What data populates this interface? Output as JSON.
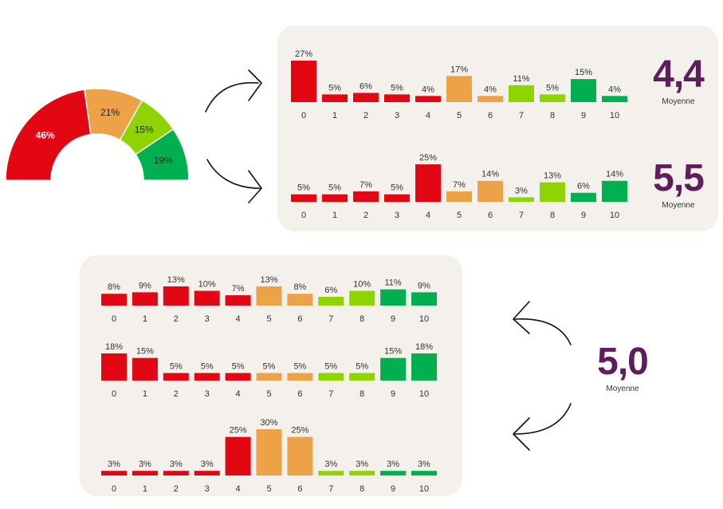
{
  "colors": {
    "red": "#e30613",
    "orange": "#eda247",
    "lightgreen": "#8fd400",
    "green": "#00b050",
    "avg_purple": "#5e1d5b",
    "panel_bg": "#f4f1ec"
  },
  "chart_data": [
    {
      "type": "pie",
      "name": "gauge",
      "slices": [
        {
          "label": "46%",
          "value": 46,
          "color": "#e30613"
        },
        {
          "label": "21%",
          "value": 21,
          "color": "#eda247"
        },
        {
          "label": "15%",
          "value": 15,
          "color": "#8fd400"
        },
        {
          "label": "19%",
          "value": 19,
          "color": "#00b050"
        }
      ]
    },
    {
      "type": "bar",
      "name": "top-chart-1",
      "categories": [
        "0",
        "1",
        "2",
        "3",
        "4",
        "5",
        "6",
        "7",
        "8",
        "9",
        "10"
      ],
      "values": [
        27,
        5,
        6,
        5,
        4,
        17,
        4,
        11,
        5,
        15,
        4
      ],
      "labels": [
        "27%",
        "5%",
        "6%",
        "5%",
        "4%",
        "17%",
        "4%",
        "11%",
        "5%",
        "15%",
        "4%"
      ],
      "average": "4,4",
      "average_label": "Moyenne"
    },
    {
      "type": "bar",
      "name": "top-chart-2",
      "categories": [
        "0",
        "1",
        "2",
        "3",
        "4",
        "5",
        "6",
        "7",
        "8",
        "9",
        "10"
      ],
      "values": [
        5,
        5,
        7,
        5,
        25,
        7,
        14,
        3,
        13,
        6,
        14
      ],
      "labels": [
        "5%",
        "5%",
        "7%",
        "5%",
        "25%",
        "7%",
        "14%",
        "3%",
        "13%",
        "6%",
        "14%"
      ],
      "average": "5,5",
      "average_label": "Moyenne"
    },
    {
      "type": "bar",
      "name": "bottom-chart-1",
      "categories": [
        "0",
        "1",
        "2",
        "3",
        "4",
        "5",
        "6",
        "7",
        "8",
        "9",
        "10"
      ],
      "values": [
        8,
        9,
        13,
        10,
        7,
        13,
        8,
        6,
        10,
        11,
        9
      ],
      "labels": [
        "8%",
        "9%",
        "13%",
        "10%",
        "7%",
        "13%",
        "8%",
        "6%",
        "10%",
        "11%",
        "9%"
      ]
    },
    {
      "type": "bar",
      "name": "bottom-chart-2",
      "categories": [
        "0",
        "1",
        "2",
        "3",
        "4",
        "5",
        "6",
        "7",
        "8",
        "9",
        "10"
      ],
      "values": [
        18,
        15,
        5,
        5,
        5,
        5,
        5,
        5,
        5,
        15,
        18
      ],
      "labels": [
        "18%",
        "15%",
        "5%",
        "5%",
        "5%",
        "5%",
        "5%",
        "5%",
        "5%",
        "15%",
        "18%"
      ]
    },
    {
      "type": "bar",
      "name": "bottom-chart-3",
      "categories": [
        "0",
        "1",
        "2",
        "3",
        "4",
        "5",
        "6",
        "7",
        "8",
        "9",
        "10"
      ],
      "values": [
        3,
        3,
        3,
        3,
        25,
        30,
        25,
        3,
        3,
        3,
        3
      ],
      "labels": [
        "3%",
        "3%",
        "3%",
        "3%",
        "25%",
        "30%",
        "25%",
        "3%",
        "3%",
        "3%",
        "3%"
      ]
    }
  ],
  "bottom_average": {
    "value": "5,0",
    "label": "Moyenne"
  }
}
